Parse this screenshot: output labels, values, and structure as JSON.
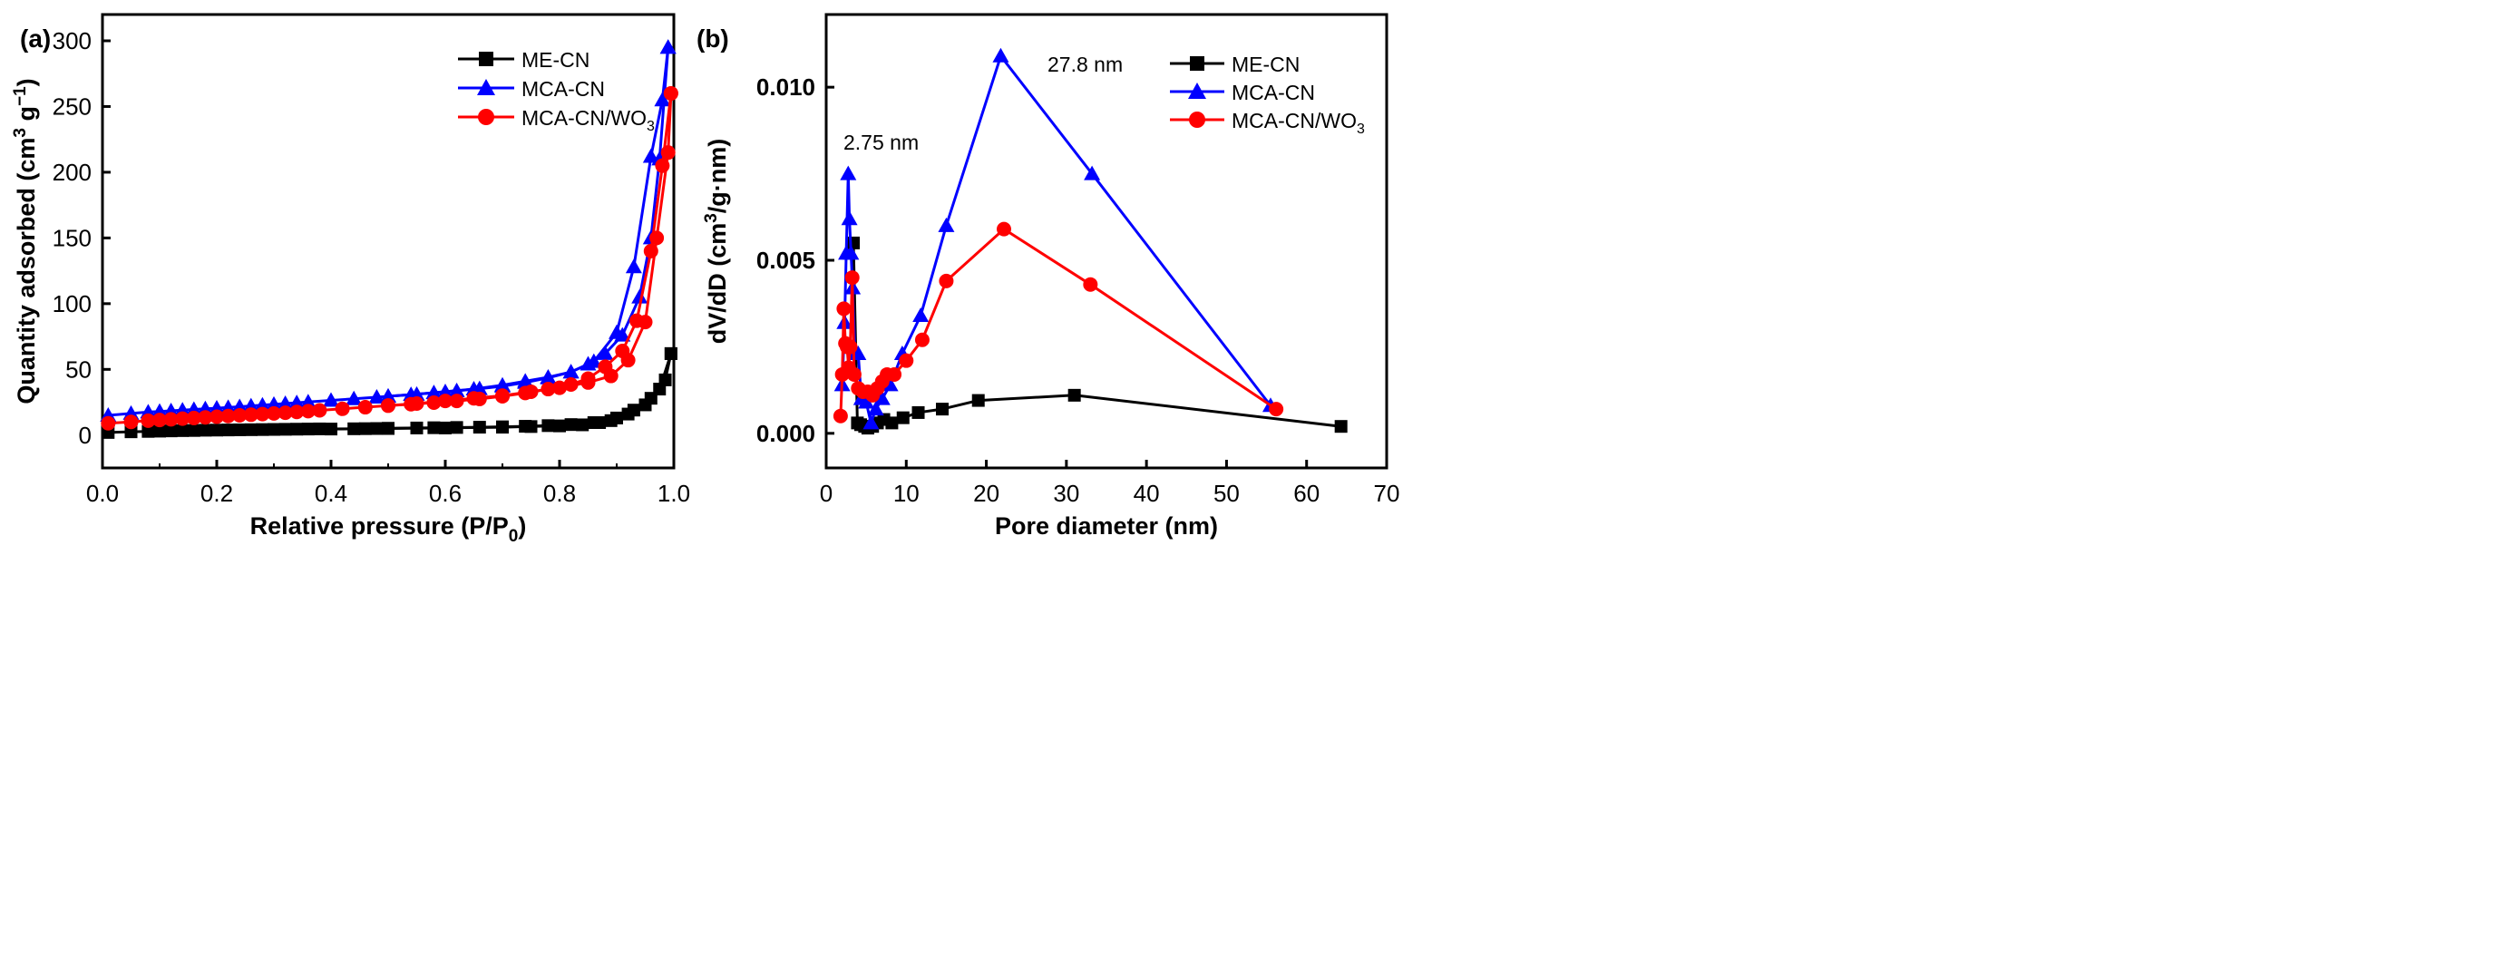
{
  "chart_data": [
    {
      "panel_label": "(a)",
      "type": "line",
      "xlabel_main": "Relative pressure (P/P",
      "xlabel_sub": "0",
      "xlabel_close": ")",
      "ylabel_main": "Quantity adsorbed (cm",
      "ylabel_sup1": "3",
      "ylabel_mid": " g",
      "ylabel_sup2": "−1",
      "ylabel_close": ")",
      "xlim": [
        0,
        1.0
      ],
      "ylim": [
        -25,
        320
      ],
      "xticks": [
        0.0,
        0.2,
        0.4,
        0.6,
        0.8,
        1.0
      ],
      "xtick_labels": [
        "0.0",
        "0.2",
        "0.4",
        "0.6",
        "0.8",
        "1.0"
      ],
      "yticks": [
        0,
        50,
        100,
        150,
        200,
        250,
        300
      ],
      "ytick_labels": [
        "0",
        "50",
        "100",
        "150",
        "200",
        "250",
        "300"
      ],
      "legend_position": "top-right",
      "series": [
        {
          "name": "ME-CN",
          "name_sub": "",
          "color": "#000000",
          "marker": "square",
          "adsorption": [
            [
              0.01,
              2
            ],
            [
              0.05,
              2.5
            ],
            [
              0.08,
              2.8
            ],
            [
              0.1,
              3
            ],
            [
              0.12,
              3.2
            ],
            [
              0.14,
              3.4
            ],
            [
              0.16,
              3.5
            ],
            [
              0.18,
              3.7
            ],
            [
              0.2,
              3.8
            ],
            [
              0.22,
              3.9
            ],
            [
              0.24,
              4
            ],
            [
              0.26,
              4.1
            ],
            [
              0.28,
              4.2
            ],
            [
              0.3,
              4.3
            ],
            [
              0.32,
              4.4
            ],
            [
              0.34,
              4.5
            ],
            [
              0.36,
              4.6
            ],
            [
              0.38,
              4.7
            ],
            [
              0.44,
              4.8
            ],
            [
              0.46,
              4.9
            ],
            [
              0.48,
              5
            ],
            [
              0.5,
              5.2
            ],
            [
              0.55,
              5.4
            ],
            [
              0.58,
              5.6
            ],
            [
              0.62,
              5.8
            ],
            [
              0.66,
              6
            ],
            [
              0.7,
              6.3
            ],
            [
              0.74,
              6.7
            ],
            [
              0.78,
              7.2
            ],
            [
              0.82,
              8
            ],
            [
              0.86,
              9.5
            ],
            [
              0.89,
              11
            ],
            [
              0.92,
              16
            ],
            [
              0.95,
              23
            ],
            [
              0.975,
              35
            ],
            [
              0.995,
              62
            ]
          ],
          "desorption": [
            [
              0.995,
              62
            ],
            [
              0.985,
              42
            ],
            [
              0.96,
              28
            ],
            [
              0.93,
              19
            ],
            [
              0.9,
              13
            ],
            [
              0.87,
              9.5
            ],
            [
              0.84,
              7.8
            ],
            [
              0.8,
              7
            ],
            [
              0.75,
              6.5
            ],
            [
              0.7,
              6
            ],
            [
              0.6,
              5.4
            ],
            [
              0.5,
              5
            ],
            [
              0.4,
              4.6
            ]
          ]
        },
        {
          "name": "MCA-CN",
          "name_sub": "",
          "color": "#0000ff",
          "marker": "triangle",
          "adsorption": [
            [
              0.01,
              15
            ],
            [
              0.05,
              16.5
            ],
            [
              0.08,
              17.5
            ],
            [
              0.1,
              18
            ],
            [
              0.12,
              18.5
            ],
            [
              0.14,
              19
            ],
            [
              0.16,
              19.5
            ],
            [
              0.18,
              20
            ],
            [
              0.2,
              20.5
            ],
            [
              0.22,
              21
            ],
            [
              0.24,
              21.6
            ],
            [
              0.26,
              22.2
            ],
            [
              0.28,
              22.8
            ],
            [
              0.3,
              23.4
            ],
            [
              0.32,
              24
            ],
            [
              0.34,
              24.6
            ],
            [
              0.36,
              25.2
            ],
            [
              0.4,
              26.4
            ],
            [
              0.44,
              27.6
            ],
            [
              0.48,
              28.8
            ],
            [
              0.5,
              29.5
            ],
            [
              0.54,
              30.8
            ],
            [
              0.58,
              32.2
            ],
            [
              0.62,
              33.7
            ],
            [
              0.66,
              35.3
            ],
            [
              0.7,
              37.2
            ],
            [
              0.74,
              40
            ],
            [
              0.78,
              43.5
            ],
            [
              0.82,
              48
            ],
            [
              0.85,
              54
            ],
            [
              0.88,
              62
            ],
            [
              0.91,
              76
            ],
            [
              0.94,
              105
            ],
            [
              0.96,
              150
            ],
            [
              0.975,
              210
            ],
            [
              0.99,
              295
            ]
          ],
          "desorption": [
            [
              0.99,
              295
            ],
            [
              0.98,
              255
            ],
            [
              0.96,
              212
            ],
            [
              0.93,
              128
            ],
            [
              0.9,
              78
            ],
            [
              0.86,
              56
            ],
            [
              0.82,
              48
            ],
            [
              0.78,
              44
            ],
            [
              0.74,
              41
            ],
            [
              0.7,
              38
            ],
            [
              0.65,
              35
            ],
            [
              0.6,
              33
            ],
            [
              0.55,
              31
            ],
            [
              0.5,
              29.5
            ]
          ]
        },
        {
          "name": "MCA-CN/WO",
          "name_sub": "3",
          "color": "#ff0000",
          "marker": "circle",
          "adsorption": [
            [
              0.01,
              9
            ],
            [
              0.05,
              10
            ],
            [
              0.08,
              11
            ],
            [
              0.1,
              11.5
            ],
            [
              0.12,
              12
            ],
            [
              0.14,
              12.5
            ],
            [
              0.16,
              13
            ],
            [
              0.18,
              13.5
            ],
            [
              0.2,
              14
            ],
            [
              0.22,
              14.5
            ],
            [
              0.24,
              15
            ],
            [
              0.26,
              15.5
            ],
            [
              0.28,
              16
            ],
            [
              0.3,
              16.5
            ],
            [
              0.32,
              17
            ],
            [
              0.34,
              17.6
            ],
            [
              0.36,
              18.2
            ],
            [
              0.38,
              18.8
            ],
            [
              0.42,
              20
            ],
            [
              0.46,
              21.2
            ],
            [
              0.5,
              22.4
            ],
            [
              0.54,
              23.5
            ],
            [
              0.58,
              24.7
            ],
            [
              0.62,
              26
            ],
            [
              0.66,
              27.5
            ],
            [
              0.7,
              29.5
            ],
            [
              0.74,
              32
            ],
            [
              0.78,
              35
            ],
            [
              0.82,
              38.5
            ],
            [
              0.85,
              43
            ],
            [
              0.88,
              52
            ],
            [
              0.91,
              64
            ],
            [
              0.935,
              87
            ],
            [
              0.96,
              140
            ],
            [
              0.98,
              205
            ],
            [
              0.995,
              260
            ]
          ],
          "desorption": [
            [
              0.995,
              260
            ],
            [
              0.99,
              215
            ],
            [
              0.97,
              150
            ],
            [
              0.95,
              86
            ],
            [
              0.92,
              57
            ],
            [
              0.89,
              45
            ],
            [
              0.85,
              40
            ],
            [
              0.8,
              36
            ],
            [
              0.75,
              33
            ],
            [
              0.7,
              30
            ],
            [
              0.65,
              28
            ],
            [
              0.6,
              26
            ],
            [
              0.55,
              24
            ],
            [
              0.5,
              22.5
            ]
          ]
        }
      ]
    },
    {
      "panel_label": "(b)",
      "type": "line",
      "xlabel": "Pore diameter (nm)",
      "ylabel_main": "dV/dD (cm",
      "ylabel_sup": "3",
      "ylabel_rest": "/g·nm)",
      "xlim": [
        0,
        70
      ],
      "ylim": [
        -0.001,
        0.0121
      ],
      "xticks": [
        0,
        10,
        20,
        30,
        40,
        50,
        60,
        70
      ],
      "xtick_labels": [
        "0",
        "10",
        "20",
        "30",
        "40",
        "50",
        "60",
        "70"
      ],
      "yticks": [
        0.0,
        0.005,
        0.01
      ],
      "ytick_labels": [
        "0.000",
        "0.005",
        "0.010"
      ],
      "legend_position": "top-right",
      "annotations": [
        {
          "text": "2.75 nm",
          "x": 2.75,
          "y": 0.0083
        },
        {
          "text": "27.8 nm",
          "x": 27.8,
          "y": 0.0114
        }
      ],
      "series": [
        {
          "name": "ME-CN",
          "name_sub": "",
          "color": "#000000",
          "marker": "square",
          "points": [
            [
              3.4,
              0.0055
            ],
            [
              3.9,
              0.0003
            ],
            [
              4.3,
              0.00025
            ],
            [
              4.8,
              0.0002
            ],
            [
              5.2,
              0.00015
            ],
            [
              5.8,
              0.0002
            ],
            [
              6.4,
              0.0003
            ],
            [
              7.2,
              0.0004
            ],
            [
              8.2,
              0.0003
            ],
            [
              9.6,
              0.00045
            ],
            [
              11.5,
              0.0006
            ],
            [
              14.5,
              0.0007
            ],
            [
              19,
              0.00095
            ],
            [
              31,
              0.0011
            ],
            [
              64.3,
              0.0002
            ]
          ]
        },
        {
          "name": "MCA-CN",
          "name_sub": "",
          "color": "#0000ff",
          "marker": "triangle",
          "points": [
            [
              2.0,
              0.0014
            ],
            [
              2.3,
              0.0032
            ],
            [
              2.5,
              0.0052
            ],
            [
              2.75,
              0.0075
            ],
            [
              2.9,
              0.0062
            ],
            [
              3.1,
              0.0052
            ],
            [
              3.3,
              0.0042
            ],
            [
              3.6,
              0.0023
            ],
            [
              4.0,
              0.0023
            ],
            [
              4.4,
              0.001
            ],
            [
              5.0,
              0.0009
            ],
            [
              5.6,
              0.0003
            ],
            [
              6.2,
              0.0007
            ],
            [
              7.0,
              0.001
            ],
            [
              8.0,
              0.0014
            ],
            [
              9.5,
              0.0023
            ],
            [
              11.8,
              0.0034
            ],
            [
              15,
              0.006
            ],
            [
              21.8,
              0.0109
            ],
            [
              33.2,
              0.0075
            ],
            [
              55.5,
              0.0008
            ]
          ]
        },
        {
          "name": "MCA-CN/WO",
          "name_sub": "3",
          "color": "#ff0000",
          "marker": "circle",
          "points": [
            [
              1.8,
              0.0005
            ],
            [
              2.0,
              0.0017
            ],
            [
              2.2,
              0.0036
            ],
            [
              2.4,
              0.0026
            ],
            [
              2.6,
              0.0025
            ],
            [
              2.8,
              0.0019
            ],
            [
              3.0,
              0.0025
            ],
            [
              3.25,
              0.0045
            ],
            [
              3.5,
              0.0017
            ],
            [
              4.0,
              0.0013
            ],
            [
              4.6,
              0.0012
            ],
            [
              5.2,
              0.0012
            ],
            [
              5.8,
              0.0011
            ],
            [
              6.4,
              0.0013
            ],
            [
              7.0,
              0.0015
            ],
            [
              7.6,
              0.0017
            ],
            [
              8.5,
              0.0017
            ],
            [
              10,
              0.0021
            ],
            [
              12,
              0.0027
            ],
            [
              15,
              0.0044
            ],
            [
              22.2,
              0.0059
            ],
            [
              33,
              0.0043
            ],
            [
              56.2,
              0.0007
            ]
          ]
        }
      ]
    }
  ]
}
